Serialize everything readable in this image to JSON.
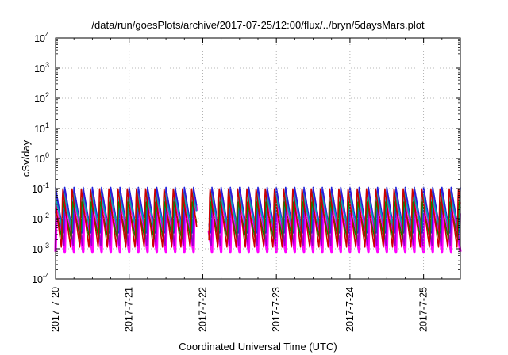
{
  "chart_data": {
    "type": "area",
    "title": "/data/run/goesPlots/archive/2017-07-25/12:00/flux/../bryn/5daysMars.plot",
    "xlabel": "Coordinated Universal Time (UTC)",
    "ylabel": "cSv/day",
    "xlim": [
      "2017-07-20 00:00",
      "2017-07-25 12:00"
    ],
    "ylim": [
      0.0001,
      10000
    ],
    "yscale": "log",
    "grid": true,
    "legend": "none",
    "x_ticks": [
      "2017-7-20",
      "2017-7-21",
      "2017-7-22",
      "2017-7-23",
      "2017-7-24",
      "2017-7-25"
    ],
    "y_ticks": [
      {
        "base": "10",
        "exp": "-4"
      },
      {
        "base": "10",
        "exp": "-3"
      },
      {
        "base": "10",
        "exp": "-2"
      },
      {
        "base": "10",
        "exp": "-1"
      },
      {
        "base": "10",
        "exp": "0"
      },
      {
        "base": "10",
        "exp": "1"
      },
      {
        "base": "10",
        "exp": "2"
      },
      {
        "base": "10",
        "exp": "3"
      },
      {
        "base": "10",
        "exp": "4"
      }
    ],
    "cycles_per_day": 8,
    "data_gap": [
      "2017-07-21 22:00",
      "2017-07-22 02:00"
    ],
    "series": [
      {
        "color": "#ff00ff",
        "peak": 0.05,
        "trough": 0.0008
      },
      {
        "color": "#9900cc",
        "peak": 0.09,
        "trough": 0.0012
      },
      {
        "color": "#2222dd",
        "peak": 0.12,
        "trough": 0.003
      },
      {
        "color": "#00aaaa",
        "peak": 0.07,
        "trough": 0.004
      },
      {
        "color": "#008800",
        "peak": 0.04,
        "trough": 0.002
      },
      {
        "color": "#cc0000",
        "peak": 0.11,
        "trough": 0.001
      }
    ]
  }
}
